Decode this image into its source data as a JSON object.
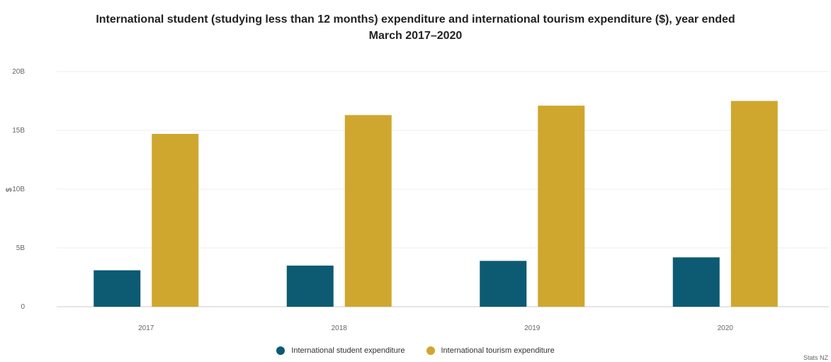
{
  "chart_data": {
    "type": "bar",
    "title": "International student (studying less than 12 months) expenditure and international tourism expenditure ($), year ended March 2017–2020",
    "title_lines": [
      "International student (studying less than 12 months) expenditure and international tourism expenditure ($), year ended",
      "March 2017–2020"
    ],
    "xlabel": "",
    "ylabel": "$",
    "categories": [
      "2017",
      "2018",
      "2019",
      "2020"
    ],
    "ylim": [
      0,
      20000000000
    ],
    "yticks": [
      {
        "value": 0,
        "label": "0"
      },
      {
        "value": 5000000000,
        "label": "5B"
      },
      {
        "value": 10000000000,
        "label": "10B"
      },
      {
        "value": 15000000000,
        "label": "15B"
      },
      {
        "value": 20000000000,
        "label": "20B"
      }
    ],
    "series": [
      {
        "name": "International student expenditure",
        "color": "#0d5a73",
        "values": [
          3100000000,
          3500000000,
          3900000000,
          4200000000
        ]
      },
      {
        "name": "International tourism expenditure",
        "color": "#cfa72e",
        "values": [
          14700000000,
          16300000000,
          17100000000,
          17500000000
        ]
      }
    ],
    "grid": true,
    "legend_position": "bottom"
  },
  "credit": "Stats NZ"
}
